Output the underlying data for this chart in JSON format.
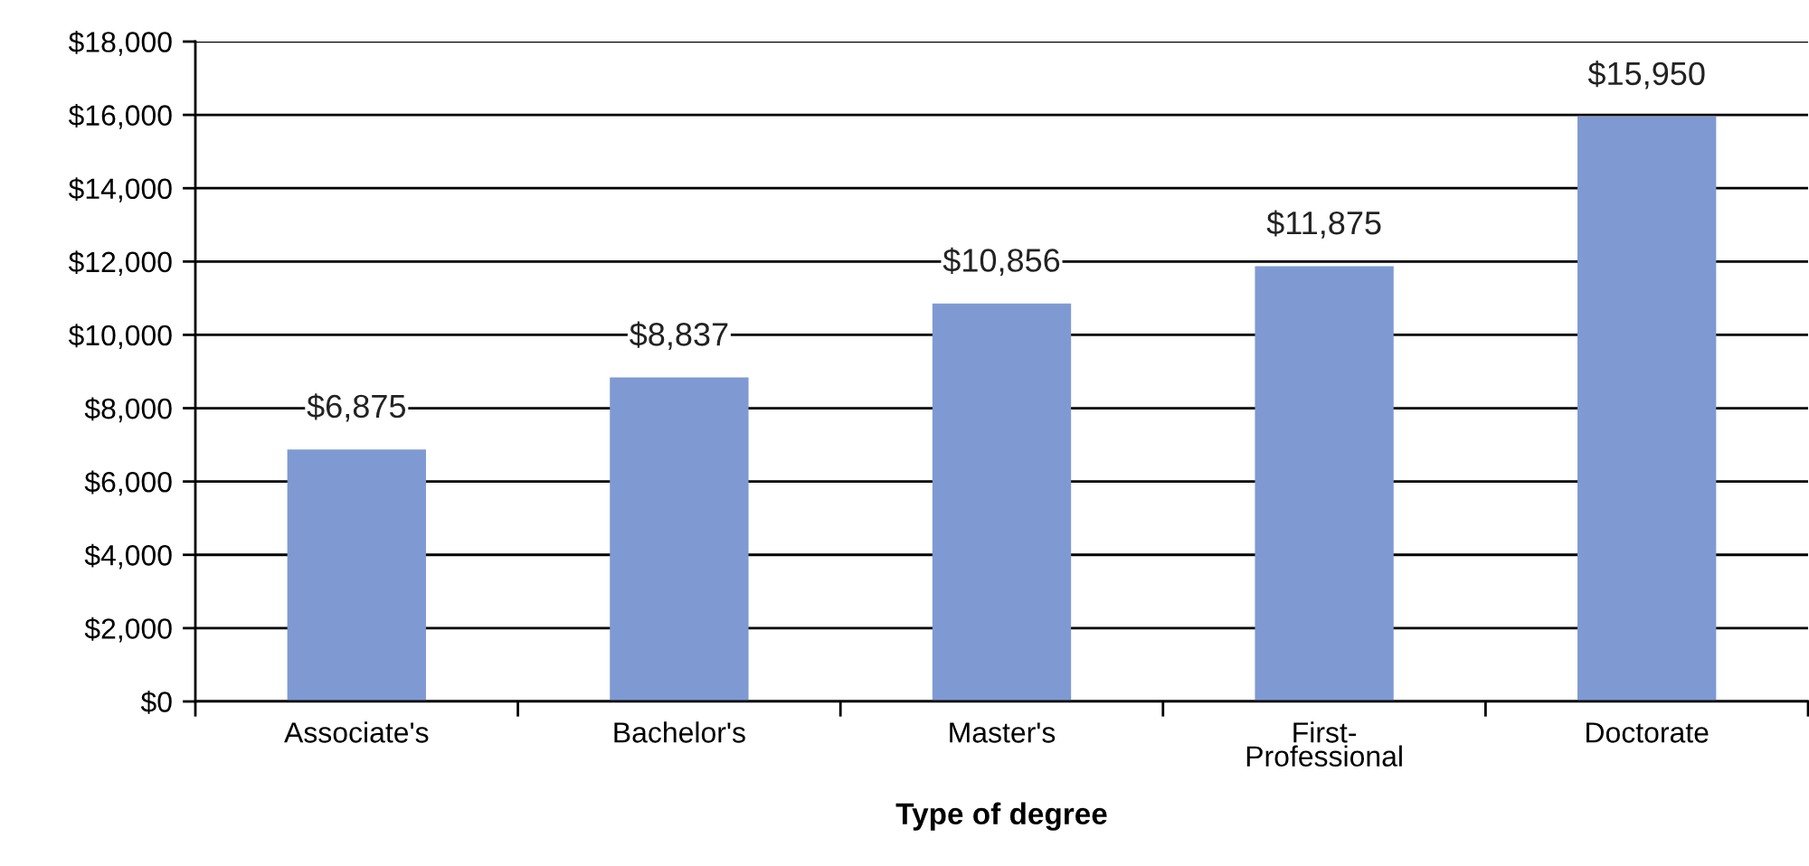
{
  "chart_data": {
    "type": "bar",
    "xlabel": "Type of degree",
    "categories": [
      "Associate's",
      "Bachelor's",
      "Master's",
      "First-\nProfessional",
      "Doctorate"
    ],
    "values": [
      6875,
      8837,
      10856,
      11875,
      15950
    ],
    "value_labels": [
      "$6,875",
      "$8,837",
      "$10,856",
      "$11,875",
      "$15,950"
    ],
    "color": "#7f9ad3",
    "ylim": [
      0,
      18000
    ],
    "yticks": [
      {
        "value": 0,
        "label": "$0"
      },
      {
        "value": 2000,
        "label": "$2,000"
      },
      {
        "value": 4000,
        "label": "$4,000"
      },
      {
        "value": 6000,
        "label": "$6,000"
      },
      {
        "value": 8000,
        "label": "$8,000"
      },
      {
        "value": 10000,
        "label": "$10,000"
      },
      {
        "value": 12000,
        "label": "$12,000"
      },
      {
        "value": 14000,
        "label": "$14,000"
      },
      {
        "value": 16000,
        "label": "$16,000"
      },
      {
        "value": 18000,
        "label": "$18,000"
      }
    ],
    "grid": "y",
    "legend": false
  }
}
